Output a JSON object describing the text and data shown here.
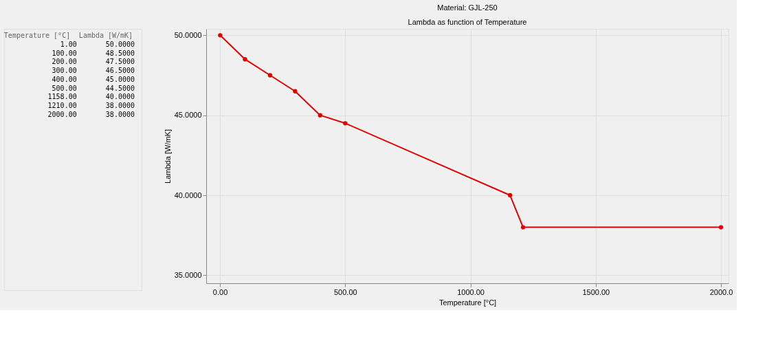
{
  "chart_data": [
    {
      "type": "other",
      "annotations": [
        "Temperature [°C]",
        "Lambda [W/mK]",
        "1.00",
        "50.0000",
        "100.00",
        "48.5000",
        "200.00",
        "47.5000",
        "300.00",
        "46.5000",
        "400.00",
        "45.0000",
        "500.00",
        "44.5000",
        "1158.00",
        "40.0000",
        "1210.00",
        "38.0000",
        "2000.00",
        "38.0000"
      ]
    },
    {
      "type": "line",
      "title": "Material: GJL-250",
      "subtitle": "Lambda as function of Temperature",
      "xlabel": "Temperature [°C]",
      "ylabel": "Lambda [W/mK]",
      "x": [
        1,
        100,
        200,
        300,
        400,
        500,
        1158,
        1210,
        2000
      ],
      "series": [
        {
          "color": "#e00000",
          "values": [
            50,
            48.5,
            47.5,
            46.5,
            45,
            44.5,
            40,
            38,
            38
          ]
        }
      ],
      "xlim": [
        -55,
        2030
      ],
      "xticks": [
        {
          "value": 0,
          "label": "0.00"
        },
        {
          "value": 500,
          "label": "500.00"
        },
        {
          "value": 1000,
          "label": "1000.00"
        },
        {
          "value": 1500,
          "label": "1500.00"
        },
        {
          "value": 2000,
          "label": "2000.0"
        }
      ],
      "ylim": [
        34.5,
        50.4
      ],
      "yticks": [
        {
          "value": 35,
          "label": "35.0000"
        },
        {
          "value": 40,
          "label": "40.0000"
        },
        {
          "value": 45,
          "label": "45.0000"
        },
        {
          "value": 50,
          "label": "50.0000"
        }
      ],
      "grid": true,
      "marker": "circle",
      "line_style": "solid"
    }
  ]
}
